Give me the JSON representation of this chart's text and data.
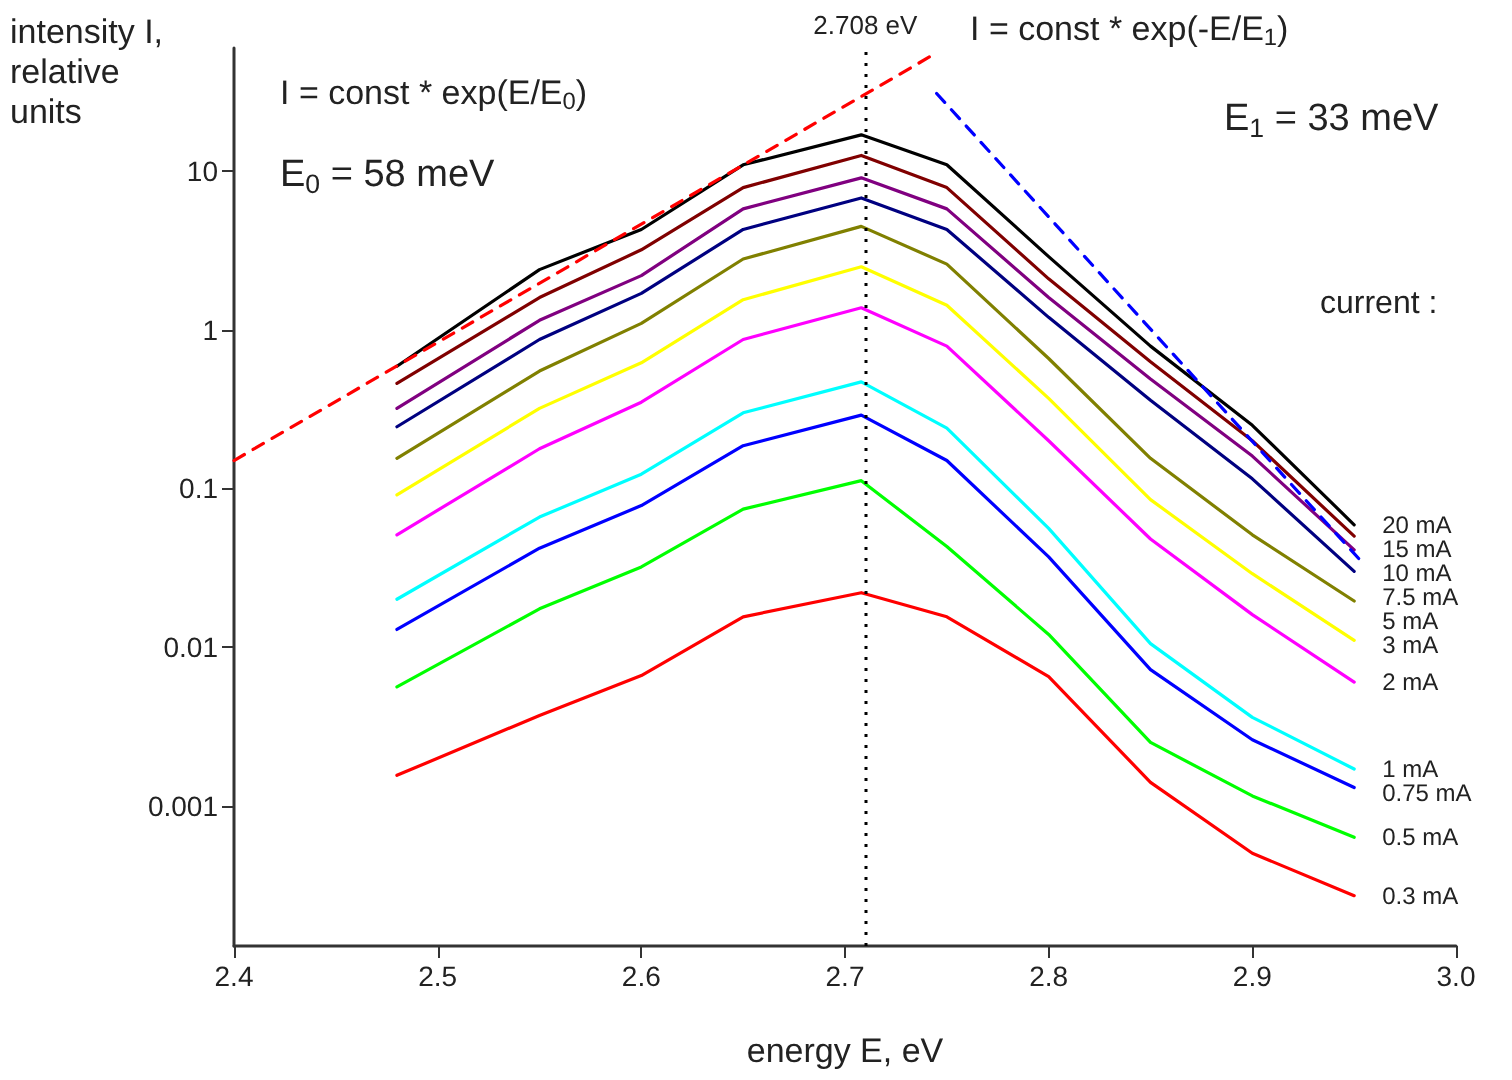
{
  "chart_data": {
    "type": "line",
    "xlabel": "energy E, eV",
    "ylabel": "intensity I, relative units",
    "x": [
      2.48,
      2.55,
      2.6,
      2.65,
      2.708,
      2.75,
      2.8,
      2.85,
      2.9,
      2.95
    ],
    "series": [
      {
        "name": "20 mA",
        "color": "#000000",
        "values": [
          0.59,
          2.4,
          4.3,
          11,
          17,
          11,
          2.9,
          0.79,
          0.25,
          0.059
        ]
      },
      {
        "name": "15 mA",
        "color": "#800000",
        "values": [
          0.46,
          1.6,
          3.2,
          7.9,
          12.6,
          7.9,
          2.1,
          0.63,
          0.2,
          0.05
        ]
      },
      {
        "name": "10 mA",
        "color": "#800080",
        "values": [
          0.32,
          1.15,
          2.2,
          5.8,
          9.1,
          5.8,
          1.6,
          0.49,
          0.16,
          0.041
        ]
      },
      {
        "name": "7.5 mA",
        "color": "#000080",
        "values": [
          0.245,
          0.87,
          1.7,
          4.3,
          6.8,
          4.3,
          1.2,
          0.36,
          0.115,
          0.03
        ]
      },
      {
        "name": "5 mA",
        "color": "#808000",
        "values": [
          0.155,
          0.55,
          1.1,
          2.8,
          4.5,
          2.6,
          0.66,
          0.155,
          0.051,
          0.0195
        ]
      },
      {
        "name": "3 mA",
        "color": "#ffff00",
        "values": [
          0.091,
          0.32,
          0.62,
          1.55,
          2.5,
          1.43,
          0.37,
          0.085,
          0.029,
          0.011
        ]
      },
      {
        "name": "2 mA",
        "color": "#ff00ff",
        "values": [
          0.051,
          0.178,
          0.35,
          0.87,
          1.38,
          0.79,
          0.2,
          0.048,
          0.016,
          0.006
        ]
      },
      {
        "name": "1 mA",
        "color": "#00ffff",
        "values": [
          0.02,
          0.066,
          0.123,
          0.3,
          0.47,
          0.24,
          0.056,
          0.0105,
          0.0036,
          0.0017
        ]
      },
      {
        "name": "0.75 mA",
        "color": "#0000ff",
        "values": [
          0.0129,
          0.042,
          0.078,
          0.186,
          0.29,
          0.15,
          0.037,
          0.0072,
          0.0026,
          0.0013
        ]
      },
      {
        "name": "0.5 mA",
        "color": "#00ff00",
        "values": [
          0.0056,
          0.0174,
          0.032,
          0.074,
          0.112,
          0.043,
          0.012,
          0.0025,
          0.00115,
          0.00063
        ]
      },
      {
        "name": "0.3 mA",
        "color": "#ff0000",
        "values": [
          0.00155,
          0.0037,
          0.0066,
          0.0155,
          0.022,
          0.0155,
          0.0065,
          0.0014,
          0.0005,
          0.00027
        ]
      },
      {
        "color": "#ff0000",
        "x": [
          2.4,
          2.745
        ],
        "values": [
          0.15,
          56
        ],
        "line_style": "dashed"
      },
      {
        "color": "#0000ff",
        "x": [
          2.745,
          2.955
        ],
        "values": [
          31,
          0.033
        ],
        "line_style": "dashed"
      }
    ],
    "xlim": [
      2.4,
      3.0
    ],
    "xticks": [
      2.4,
      2.5,
      2.6,
      2.7,
      2.8,
      2.9,
      {
        "value": 3,
        "label": "3.0"
      }
    ],
    "ylim": [
      0.00013,
      60
    ],
    "yticks": [
      0.001,
      0.01,
      0.1,
      1,
      10
    ],
    "log": "y",
    "grid": false,
    "marker": "none",
    "line_style": "solid",
    "ref_lines": [
      {
        "axis": "x",
        "value": 2.708,
        "label": "2.708 eV",
        "color": "#000000",
        "line_style": "dotted"
      }
    ],
    "annotations": [
      "I = const * exp(E/E$_{0}$)",
      "E$_{0}$ = 58 meV",
      "I = const * exp(-E/E$_{1}$)",
      "E$_{1}$ = 33 meV",
      "current :"
    ]
  }
}
